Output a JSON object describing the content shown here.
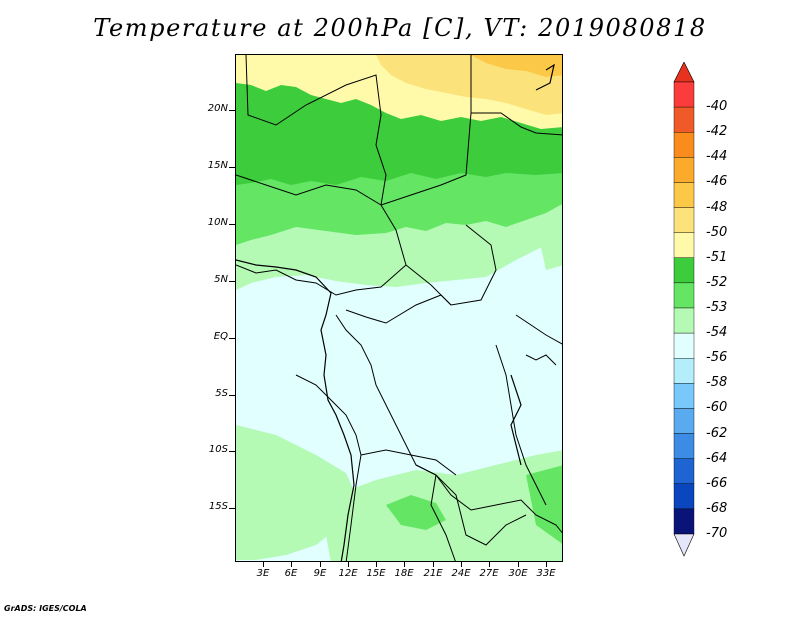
{
  "title": "Temperature at 200hPa [C], VT: 2019080818",
  "credit": "GrADS: IGES/COLA",
  "latitude_labels": [
    "20N",
    "15N",
    "10N",
    "5N",
    "EQ",
    "5S",
    "10S",
    "15S"
  ],
  "longitude_labels": [
    "3E",
    "6E",
    "9E",
    "12E",
    "15E",
    "18E",
    "21E",
    "24E",
    "27E",
    "30E",
    "33E"
  ],
  "colorbar": {
    "labels": [
      "-40",
      "-42",
      "-44",
      "-46",
      "-48",
      "-50",
      "-51",
      "-52",
      "-53",
      "-54",
      "-56",
      "-58",
      "-60",
      "-62",
      "-64",
      "-66",
      "-68",
      "-70"
    ],
    "colors": [
      "#fa3c3c",
      "#f05a28",
      "#fa8c1e",
      "#fcaa2c",
      "#fcc848",
      "#fce27a",
      "#fffaaa",
      "#3ccc3c",
      "#64e664",
      "#b4fab4",
      "#e0fffe",
      "#b4eefa",
      "#78c8fa",
      "#5aaaf0",
      "#3c8ce6",
      "#1e64d2",
      "#0a46be",
      "#0a1478"
    ],
    "top_color": "#e6321e",
    "bottom_color": "#e6e6fa"
  },
  "map_colors": {
    "c46": "#fcc848",
    "c48": "#fce27a",
    "c50": "#fffaaa",
    "c51": "#3ccc3c",
    "c52": "#64e664",
    "c53": "#b4fab4",
    "c54": "#e0fffe"
  }
}
